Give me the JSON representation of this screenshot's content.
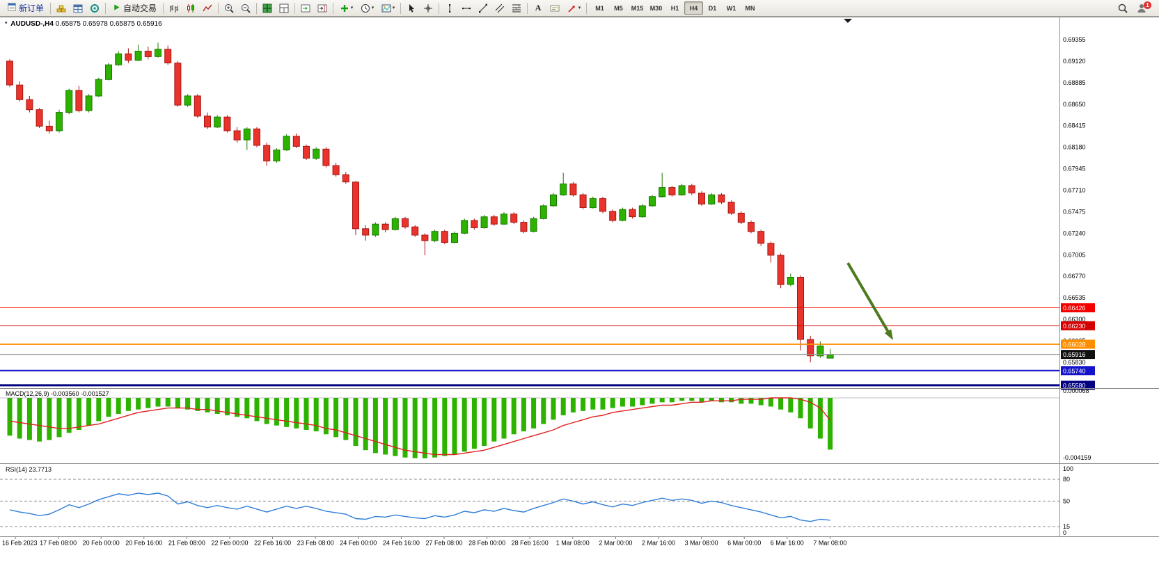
{
  "toolbar": {
    "new_order_label": "新订单",
    "autotrading_label": "自动交易",
    "timeframes": [
      "M1",
      "M5",
      "M15",
      "M30",
      "H1",
      "H4",
      "D1",
      "W1",
      "MN"
    ],
    "active_timeframe": "H4",
    "notification_count": "1"
  },
  "icons": {
    "caret": "▾",
    "text_tool": "A"
  },
  "chart_data": {
    "type": "candlestick",
    "symbol_period": "AUDUSD-,H4",
    "ohlc_text": "0.65875 0.65978 0.65875 0.65916",
    "ylim": [
      0.65555,
      0.69606
    ],
    "colors": {
      "up": "#2DB200",
      "up_border": "#1A7A00",
      "down": "#E8342C",
      "down_border": "#A81510"
    },
    "price_axis_labels": [
      "0.69355",
      "0.69120",
      "0.68885",
      "0.68650",
      "0.68415",
      "0.68180",
      "0.67945",
      "0.67710",
      "0.67475",
      "0.67240",
      "0.67005",
      "0.66770",
      "0.66535",
      "0.66300",
      "0.66065",
      "0.65830"
    ],
    "x_labels": [
      "16 Feb 2023",
      "17 Feb 08:00",
      "20 Feb 00:00",
      "20 Feb 16:00",
      "21 Feb 08:00",
      "22 Feb 00:00",
      "22 Feb 16:00",
      "23 Feb 08:00",
      "24 Feb 00:00",
      "24 Feb 16:00",
      "27 Feb 08:00",
      "28 Feb 00:00",
      "28 Feb 16:00",
      "1 Mar 08:00",
      "2 Mar 00:00",
      "2 Mar 16:00",
      "3 Mar 08:00",
      "6 Mar 00:00",
      "6 Mar 16:00",
      "7 Mar 08:00"
    ],
    "candles": [
      [
        0.6912,
        0.6914,
        0.6884,
        0.6886
      ],
      [
        0.6886,
        0.689,
        0.6868,
        0.687
      ],
      [
        0.687,
        0.6874,
        0.6856,
        0.6859
      ],
      [
        0.6859,
        0.6861,
        0.6839,
        0.6841
      ],
      [
        0.6841,
        0.6847,
        0.6833,
        0.6836
      ],
      [
        0.6836,
        0.6859,
        0.6834,
        0.6856
      ],
      [
        0.6856,
        0.6882,
        0.6854,
        0.688
      ],
      [
        0.688,
        0.6885,
        0.6856,
        0.6858
      ],
      [
        0.6858,
        0.6876,
        0.6856,
        0.6874
      ],
      [
        0.6874,
        0.6894,
        0.6873,
        0.6892
      ],
      [
        0.6892,
        0.691,
        0.6891,
        0.6908
      ],
      [
        0.6908,
        0.6923,
        0.6907,
        0.692
      ],
      [
        0.692,
        0.6926,
        0.691,
        0.6913
      ],
      [
        0.6913,
        0.693,
        0.6912,
        0.6923
      ],
      [
        0.6923,
        0.6928,
        0.6914,
        0.6917
      ],
      [
        0.6917,
        0.6932,
        0.6916,
        0.6925
      ],
      [
        0.6925,
        0.6929,
        0.6908,
        0.691
      ],
      [
        0.691,
        0.6912,
        0.6862,
        0.6864
      ],
      [
        0.6864,
        0.6876,
        0.6862,
        0.6874
      ],
      [
        0.6874,
        0.6876,
        0.685,
        0.6852
      ],
      [
        0.6852,
        0.6856,
        0.6838,
        0.684
      ],
      [
        0.684,
        0.6853,
        0.6839,
        0.6851
      ],
      [
        0.6851,
        0.6853,
        0.6834,
        0.6836
      ],
      [
        0.6836,
        0.684,
        0.6823,
        0.6826
      ],
      [
        0.6826,
        0.684,
        0.6815,
        0.6838
      ],
      [
        0.6838,
        0.684,
        0.6818,
        0.682
      ],
      [
        0.682,
        0.6823,
        0.6798,
        0.6803
      ],
      [
        0.6803,
        0.6817,
        0.6801,
        0.6815
      ],
      [
        0.6815,
        0.6832,
        0.6814,
        0.683
      ],
      [
        0.683,
        0.6833,
        0.6817,
        0.6819
      ],
      [
        0.6819,
        0.6821,
        0.6804,
        0.6806
      ],
      [
        0.6806,
        0.6818,
        0.6804,
        0.6816
      ],
      [
        0.6816,
        0.6818,
        0.6796,
        0.6798
      ],
      [
        0.6798,
        0.6801,
        0.6786,
        0.6788
      ],
      [
        0.6788,
        0.6791,
        0.6778,
        0.678
      ],
      [
        0.678,
        0.6781,
        0.6722,
        0.6729
      ],
      [
        0.6729,
        0.6733,
        0.6716,
        0.6722
      ],
      [
        0.6722,
        0.6736,
        0.672,
        0.6734
      ],
      [
        0.6734,
        0.6736,
        0.6725,
        0.6728
      ],
      [
        0.6728,
        0.6742,
        0.6727,
        0.674
      ],
      [
        0.674,
        0.6742,
        0.6729,
        0.6731
      ],
      [
        0.6731,
        0.6733,
        0.672,
        0.6722
      ],
      [
        0.6722,
        0.6724,
        0.67,
        0.6716
      ],
      [
        0.6716,
        0.6728,
        0.6714,
        0.6726
      ],
      [
        0.6726,
        0.6728,
        0.6712,
        0.6714
      ],
      [
        0.6714,
        0.6726,
        0.6713,
        0.6724
      ],
      [
        0.6724,
        0.674,
        0.6723,
        0.6738
      ],
      [
        0.6738,
        0.674,
        0.6728,
        0.673
      ],
      [
        0.673,
        0.6744,
        0.6729,
        0.6742
      ],
      [
        0.6742,
        0.6744,
        0.6732,
        0.6734
      ],
      [
        0.6734,
        0.6747,
        0.6733,
        0.6745
      ],
      [
        0.6745,
        0.6747,
        0.6734,
        0.6736
      ],
      [
        0.6736,
        0.6738,
        0.6724,
        0.6726
      ],
      [
        0.6726,
        0.6742,
        0.6725,
        0.674
      ],
      [
        0.674,
        0.6756,
        0.6739,
        0.6754
      ],
      [
        0.6754,
        0.6768,
        0.6753,
        0.6766
      ],
      [
        0.6766,
        0.679,
        0.6765,
        0.6778
      ],
      [
        0.6778,
        0.678,
        0.6764,
        0.6766
      ],
      [
        0.6766,
        0.6768,
        0.675,
        0.6752
      ],
      [
        0.6752,
        0.6764,
        0.6751,
        0.6762
      ],
      [
        0.6762,
        0.6764,
        0.6746,
        0.6748
      ],
      [
        0.6748,
        0.675,
        0.6736,
        0.6738
      ],
      [
        0.6738,
        0.6752,
        0.6737,
        0.675
      ],
      [
        0.675,
        0.6752,
        0.674,
        0.6742
      ],
      [
        0.6742,
        0.6756,
        0.6741,
        0.6754
      ],
      [
        0.6754,
        0.6766,
        0.6753,
        0.6764
      ],
      [
        0.6764,
        0.679,
        0.6763,
        0.6774
      ],
      [
        0.6774,
        0.6776,
        0.6764,
        0.6766
      ],
      [
        0.6766,
        0.6778,
        0.6765,
        0.6776
      ],
      [
        0.6776,
        0.6778,
        0.6766,
        0.6768
      ],
      [
        0.6768,
        0.677,
        0.6754,
        0.6756
      ],
      [
        0.6756,
        0.6768,
        0.6755,
        0.6766
      ],
      [
        0.6766,
        0.6768,
        0.6756,
        0.6758
      ],
      [
        0.6758,
        0.676,
        0.6744,
        0.6746
      ],
      [
        0.6746,
        0.6748,
        0.6734,
        0.6736
      ],
      [
        0.6736,
        0.6738,
        0.6724,
        0.6726
      ],
      [
        0.6726,
        0.6728,
        0.671,
        0.6713
      ],
      [
        0.6713,
        0.6715,
        0.6692,
        0.67
      ],
      [
        0.67,
        0.6702,
        0.6664,
        0.6668
      ],
      [
        0.6668,
        0.668,
        0.6666,
        0.6676
      ],
      [
        0.6676,
        0.6678,
        0.6596,
        0.6608
      ],
      [
        0.6608,
        0.6612,
        0.6583,
        0.659
      ],
      [
        0.659,
        0.6606,
        0.6588,
        0.6601
      ],
      [
        0.65875,
        0.65978,
        0.65875,
        0.65916
      ]
    ],
    "hlines": [
      {
        "price": 0.66426,
        "label": "0.66426",
        "color": "#F40000",
        "width": 1
      },
      {
        "price": 0.6623,
        "label": "0.66230",
        "color": "#D40000",
        "width": 1
      },
      {
        "price": 0.66028,
        "label": "0.66028",
        "color": "#FF8D00",
        "width": 2
      },
      {
        "price": 0.6574,
        "label": "0.65740",
        "color": "#1414CC",
        "width": 2
      },
      {
        "price": 0.6558,
        "label": "0.65580",
        "color": "#000080",
        "width": 3
      }
    ],
    "current_price": {
      "value": 0.65916,
      "label": "0.65916"
    },
    "indicators": [
      {
        "type": "macd",
        "label": "MACD(12,26,9)",
        "values_text": "-0.003560 -0.001527",
        "axis_max_label": "0.000068",
        "axis_min_label": "-0.004159",
        "colors": {
          "histogram": "#2DB200",
          "signal": "#E02020"
        },
        "histogram": [
          -0.0026,
          -0.0028,
          -0.0029,
          -0.003,
          -0.0029,
          -0.0027,
          -0.0024,
          -0.0022,
          -0.0019,
          -0.0016,
          -0.0013,
          -0.0011,
          -0.0009,
          -0.0008,
          -0.0007,
          -0.0006,
          -0.0006,
          -0.0007,
          -0.0008,
          -0.0009,
          -0.001,
          -0.0011,
          -0.0012,
          -0.0013,
          -0.0014,
          -0.0016,
          -0.0018,
          -0.0019,
          -0.002,
          -0.0021,
          -0.0022,
          -0.0023,
          -0.0025,
          -0.0027,
          -0.0029,
          -0.0033,
          -0.0036,
          -0.0038,
          -0.0039,
          -0.004,
          -0.0041,
          -0.00415,
          -0.00416,
          -0.0041,
          -0.004,
          -0.0039,
          -0.0037,
          -0.0035,
          -0.0033,
          -0.003,
          -0.0028,
          -0.0025,
          -0.0023,
          -0.0021,
          -0.0018,
          -0.0015,
          -0.0012,
          -0.001,
          -0.0009,
          -0.0008,
          -0.0008,
          -0.0007,
          -0.0006,
          -0.0006,
          -0.0005,
          -0.0004,
          -0.0003,
          -0.0003,
          -0.0002,
          -0.0002,
          -0.0003,
          -0.0002,
          -0.0003,
          -0.0003,
          -0.0004,
          -0.0004,
          -0.0005,
          -0.0006,
          -0.0008,
          -0.001,
          -0.0014,
          -0.0021,
          -0.0028,
          -0.00356
        ],
        "signal": [
          -0.0016,
          -0.0017,
          -0.0018,
          -0.0019,
          -0.002,
          -0.0021,
          -0.0021,
          -0.002,
          -0.0019,
          -0.0018,
          -0.0016,
          -0.0014,
          -0.0012,
          -0.001,
          -0.0009,
          -0.0008,
          -0.0007,
          -0.0007,
          -0.0007,
          -0.0008,
          -0.0008,
          -0.0009,
          -0.001,
          -0.0011,
          -0.0012,
          -0.0013,
          -0.0014,
          -0.0015,
          -0.0016,
          -0.0017,
          -0.0018,
          -0.0019,
          -0.0021,
          -0.0022,
          -0.0024,
          -0.0026,
          -0.0028,
          -0.003,
          -0.0032,
          -0.0034,
          -0.0036,
          -0.0037,
          -0.0038,
          -0.0039,
          -0.0039,
          -0.0039,
          -0.0038,
          -0.0037,
          -0.0036,
          -0.0034,
          -0.0032,
          -0.003,
          -0.0028,
          -0.0026,
          -0.0024,
          -0.0022,
          -0.0019,
          -0.0017,
          -0.0015,
          -0.0013,
          -0.0012,
          -0.001,
          -0.0009,
          -0.0008,
          -0.0007,
          -0.0006,
          -0.0005,
          -0.0005,
          -0.0004,
          -0.0003,
          -0.0003,
          -0.0002,
          -0.0002,
          -0.0002,
          -0.0001,
          -0.0001,
          -0.0001,
          0.0,
          0.0,
          0.0,
          -0.0001,
          -0.0003,
          -0.0007,
          -0.001527
        ]
      },
      {
        "type": "rsi",
        "label": "RSI(14)",
        "value_text": "23.7713",
        "period": 14,
        "color": "#2F7ED8",
        "levels": [
          80,
          50,
          15
        ],
        "axis_labels": [
          "100",
          "80",
          "50",
          "15",
          "0"
        ],
        "values": [
          38,
          35,
          33,
          30,
          32,
          38,
          45,
          41,
          46,
          52,
          56,
          60,
          58,
          61,
          59,
          61,
          57,
          46,
          49,
          44,
          41,
          44,
          41,
          39,
          43,
          39,
          35,
          39,
          43,
          40,
          43,
          40,
          36,
          34,
          32,
          26,
          25,
          29,
          28,
          31,
          29,
          27,
          26,
          30,
          28,
          31,
          36,
          34,
          38,
          36,
          40,
          37,
          35,
          40,
          44,
          48,
          53,
          50,
          46,
          49,
          45,
          42,
          46,
          44,
          48,
          51,
          54,
          51,
          53,
          51,
          47,
          50,
          48,
          44,
          41,
          38,
          35,
          31,
          27,
          29,
          24,
          22,
          25,
          23.7713
        ]
      }
    ],
    "annotation_arrow": {
      "from": [
        1218,
        378
      ],
      "to": [
        1283,
        489
      ],
      "color": "#4C7A1E"
    }
  }
}
